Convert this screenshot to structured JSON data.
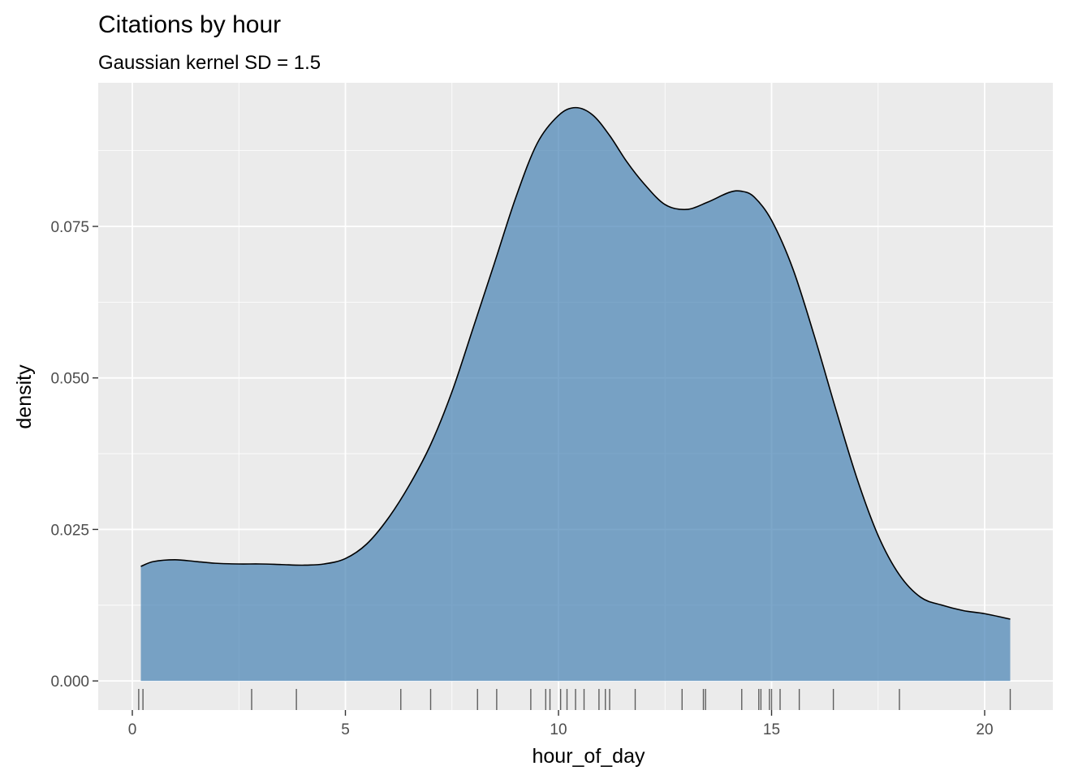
{
  "chart_data": {
    "type": "area",
    "title": "Citations by hour",
    "subtitle": "Gaussian kernel SD = 1.5",
    "xlabel": "hour_of_day",
    "ylabel": "density",
    "xlim": [
      -0.8,
      21.6
    ],
    "ylim": [
      -0.0048,
      0.0987
    ],
    "x_ticks": [
      0,
      5,
      10,
      15,
      20
    ],
    "x_tick_labels": [
      "0",
      "5",
      "10",
      "15",
      "20"
    ],
    "x_minor_ticks": [
      2.5,
      7.5,
      12.5,
      17.5
    ],
    "y_ticks": [
      0,
      0.025,
      0.05,
      0.075
    ],
    "y_tick_labels": [
      "0.000",
      "0.025",
      "0.050",
      "0.075"
    ],
    "y_minor_ticks": [
      0.0125,
      0.0375,
      0.0625,
      0.0875
    ],
    "fill_color": "#4682B4",
    "fill_opacity": 0.7,
    "line_color": "#000000",
    "panel_background": "#EBEBEB",
    "grid": true,
    "density_curve": {
      "x": [
        0.2,
        0.5,
        1.0,
        1.5,
        2.0,
        2.5,
        3.0,
        3.5,
        4.0,
        4.5,
        5.0,
        5.5,
        6.0,
        6.5,
        7.0,
        7.5,
        8.0,
        8.5,
        9.0,
        9.5,
        10.0,
        10.4,
        10.8,
        11.2,
        11.6,
        12.0,
        12.5,
        13.0,
        13.5,
        14.0,
        14.3,
        14.6,
        15.0,
        15.5,
        16.0,
        16.5,
        17.0,
        17.5,
        18.0,
        18.5,
        19.0,
        19.5,
        20.0,
        20.6
      ],
      "y": [
        0.0189,
        0.0197,
        0.02,
        0.0197,
        0.0194,
        0.0193,
        0.0193,
        0.0192,
        0.0191,
        0.0193,
        0.0202,
        0.0226,
        0.0268,
        0.0323,
        0.039,
        0.0477,
        0.0583,
        0.069,
        0.0798,
        0.0887,
        0.0933,
        0.0946,
        0.0934,
        0.09,
        0.0857,
        0.0821,
        0.0786,
        0.0778,
        0.079,
        0.0806,
        0.0808,
        0.0798,
        0.076,
        0.068,
        0.057,
        0.045,
        0.0335,
        0.024,
        0.0175,
        0.0138,
        0.0125,
        0.0116,
        0.0111,
        0.0102
      ]
    },
    "rug_x": [
      0.15,
      0.25,
      2.8,
      3.85,
      6.3,
      7.0,
      8.1,
      8.55,
      9.35,
      9.7,
      9.8,
      10.05,
      10.2,
      10.4,
      10.6,
      10.95,
      11.1,
      11.2,
      11.8,
      12.9,
      13.4,
      13.45,
      14.3,
      14.7,
      14.75,
      14.95,
      15.0,
      15.2,
      15.65,
      16.45,
      18.0,
      20.6
    ]
  }
}
